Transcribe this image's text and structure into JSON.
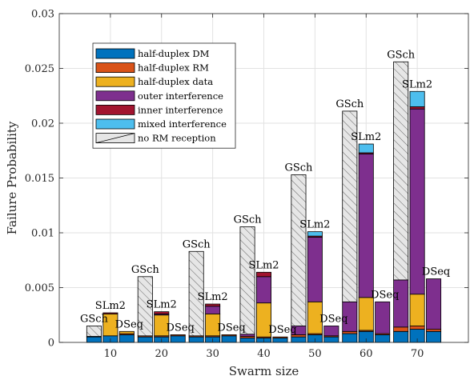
{
  "chart_data": {
    "type": "bar",
    "stacked": true,
    "xlabel": "Swarm size",
    "ylabel": "Failure Probability",
    "ylim": [
      0,
      0.03
    ],
    "yticks": [
      0,
      0.005,
      0.01,
      0.015,
      0.02,
      0.025,
      0.03
    ],
    "ytick_labels": [
      "0",
      "0.005",
      "0.01",
      "0.015",
      "0.02",
      "0.025",
      "0.03"
    ],
    "categories": [
      "10",
      "20",
      "30",
      "40",
      "50",
      "60",
      "70"
    ],
    "xlim": [
      0,
      80
    ],
    "grid": true,
    "legend_position": "top-left",
    "schemes": [
      "GSch",
      "SLm2",
      "DSeq"
    ],
    "series": [
      {
        "name": "half-duplex DM",
        "color": "#0072BD",
        "hatch": false,
        "values": {
          "GSch": [
            0.0005,
            0.0005,
            0.0005,
            0.0004,
            0.0005,
            0.0008,
            0.001
          ],
          "SLm2": [
            0.0006,
            0.0005,
            0.0005,
            0.0004,
            0.0007,
            0.001,
            0.0012
          ],
          "DSeq": [
            0.0007,
            0.0006,
            0.0006,
            0.0004,
            0.0005,
            0.0007,
            0.001
          ]
        }
      },
      {
        "name": "half-duplex RM",
        "color": "#D95319",
        "hatch": false,
        "values": {
          "GSch": [
            5e-05,
            0.0001,
            0.0001,
            0.00015,
            0.0002,
            0.0002,
            0.0004
          ],
          "SLm2": [
            0.0,
            0.0001,
            0.0001,
            0.0001,
            0.0001,
            0.0001,
            0.0003
          ],
          "DSeq": [
            0.0001,
            0.0001,
            0.0001,
            0.0001,
            0.0001,
            0.0001,
            0.0002
          ]
        }
      },
      {
        "name": "half-duplex data",
        "color": "#EDB120",
        "hatch": false,
        "values": {
          "GSch": [
            0.0,
            0.0,
            0.0,
            0.0,
            0.0,
            0.0,
            0.0
          ],
          "SLm2": [
            0.002,
            0.0019,
            0.002,
            0.0031,
            0.0029,
            0.003,
            0.0029
          ],
          "DSeq": [
            0.0002,
            0.0,
            0.0,
            0.0,
            0.0,
            0.0,
            0.0
          ]
        }
      },
      {
        "name": "outer interference",
        "color": "#7E2F8E",
        "hatch": false,
        "values": {
          "GSch": [
            0.0,
            0.0,
            0.0,
            0.0002,
            0.0008,
            0.0027,
            0.0043
          ],
          "SLm2": [
            0.0,
            0.0001,
            0.0007,
            0.0024,
            0.0059,
            0.0131,
            0.0169
          ],
          "DSeq": [
            0.0,
            0.0,
            0.0,
            0.0,
            0.0009,
            0.0029,
            0.0046
          ]
        }
      },
      {
        "name": "inner interference",
        "color": "#A2142F",
        "hatch": false,
        "values": {
          "GSch": [
            0.0,
            0.0,
            0.0,
            0.0,
            0.0,
            0.0,
            0.0
          ],
          "SLm2": [
            0.0001,
            0.0002,
            0.0002,
            0.0004,
            0.0001,
            0.0001,
            0.0002
          ],
          "DSeq": [
            0.0,
            0.0,
            0.0,
            0.0,
            0.0,
            0.0,
            0.0
          ]
        }
      },
      {
        "name": "mixed interference",
        "color": "#4DBEEE",
        "hatch": false,
        "values": {
          "GSch": [
            0.0,
            0.0,
            0.0,
            0.0,
            0.0,
            0.0,
            0.0
          ],
          "SLm2": [
            0.0,
            0.0,
            0.0,
            0.0,
            0.0004,
            0.0008,
            0.0014
          ],
          "DSeq": [
            0.0,
            0.0,
            0.0,
            0.0,
            0.0,
            0.0,
            0.0
          ]
        }
      },
      {
        "name": "no RM reception",
        "color": "#E6E6E6",
        "hatch": true,
        "values": {
          "GSch": [
            0.00095,
            0.0054,
            0.0077,
            0.0098,
            0.0138,
            0.0174,
            0.0199
          ],
          "SLm2": [
            0.0,
            0.0,
            0.0,
            0.0,
            0.0,
            0.0,
            0.0
          ],
          "DSeq": [
            0.0,
            0.0,
            0.0,
            0.0,
            0.0,
            0.0,
            0.0
          ]
        }
      }
    ]
  }
}
